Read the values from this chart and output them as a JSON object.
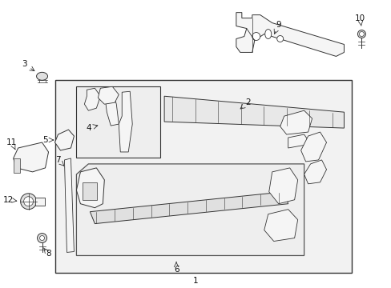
{
  "bg_color": "#ffffff",
  "part_fill": "#f5f5f5",
  "part_edge": "#333333",
  "box_fill": "#ececec",
  "box_edge": "#444444",
  "fig_width": 4.89,
  "fig_height": 3.6,
  "dpi": 100
}
